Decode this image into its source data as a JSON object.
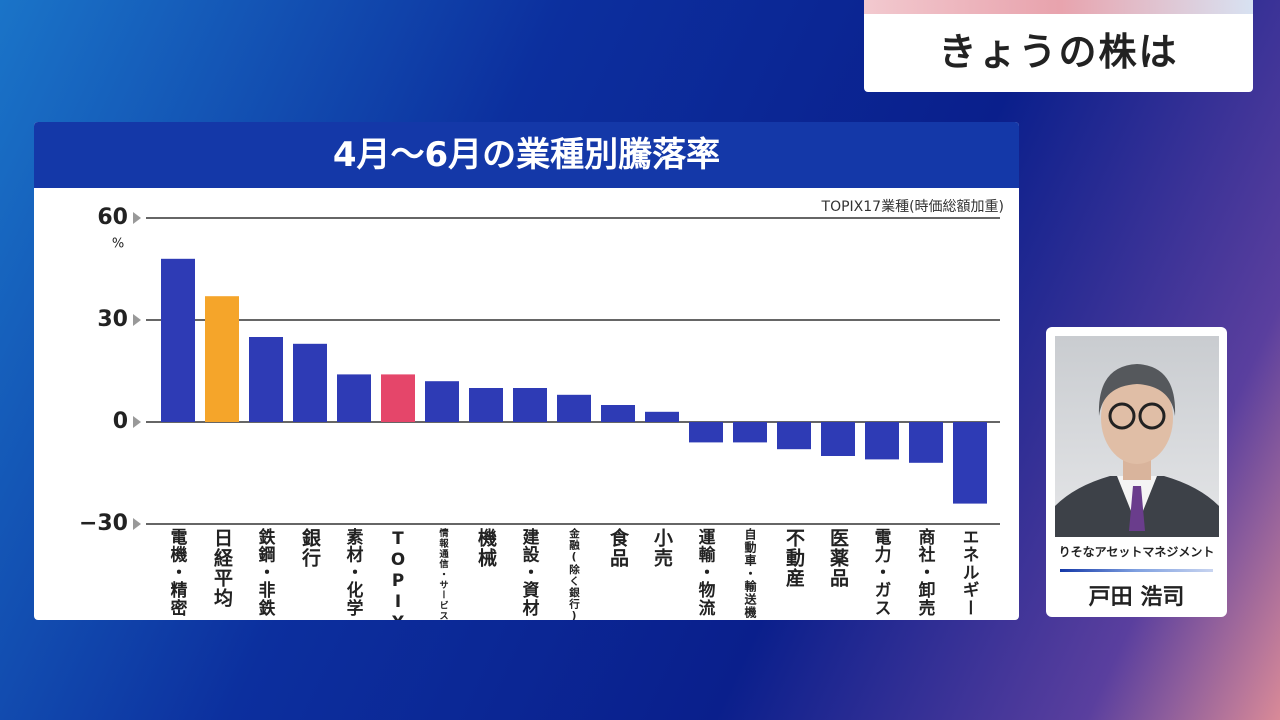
{
  "header": {
    "title": "きょうの株は"
  },
  "chart_data": {
    "type": "bar",
    "title": "4月～6月の業種別騰落率",
    "subtitle": "TOPIX17業種(時価総額加重)",
    "y_unit": "%",
    "categories": [
      "電機・精密",
      "日経平均",
      "鉄鋼・非鉄",
      "銀行",
      "素材・化学",
      "TOPIX",
      "情報通信・サービス",
      "機械",
      "建設・資材",
      "金融(除く銀行)",
      "食品",
      "小売",
      "運輸・物流",
      "自動車・輸送機",
      "不動産",
      "医薬品",
      "電力・ガス",
      "商社・卸売",
      "エネルギー"
    ],
    "values": [
      48,
      37,
      25,
      23,
      14,
      14,
      12,
      10,
      10,
      8,
      5,
      3,
      -6,
      -6,
      -8,
      -10,
      -11,
      -12,
      -24
    ],
    "colors": [
      "#2e3bb5",
      "#f5a52a",
      "#2e3bb5",
      "#2e3bb5",
      "#2e3bb5",
      "#e5466a",
      "#2e3bb5",
      "#2e3bb5",
      "#2e3bb5",
      "#2e3bb5",
      "#2e3bb5",
      "#2e3bb5",
      "#2e3bb5",
      "#2e3bb5",
      "#2e3bb5",
      "#2e3bb5",
      "#2e3bb5",
      "#2e3bb5",
      "#2e3bb5"
    ],
    "ylim": [
      -30,
      60
    ],
    "yticks": [
      {
        "value": -30,
        "label": "−30"
      },
      0,
      30,
      60
    ]
  },
  "guest": {
    "company": "りそなアセットマネジメント",
    "name": "戸田 浩司"
  }
}
